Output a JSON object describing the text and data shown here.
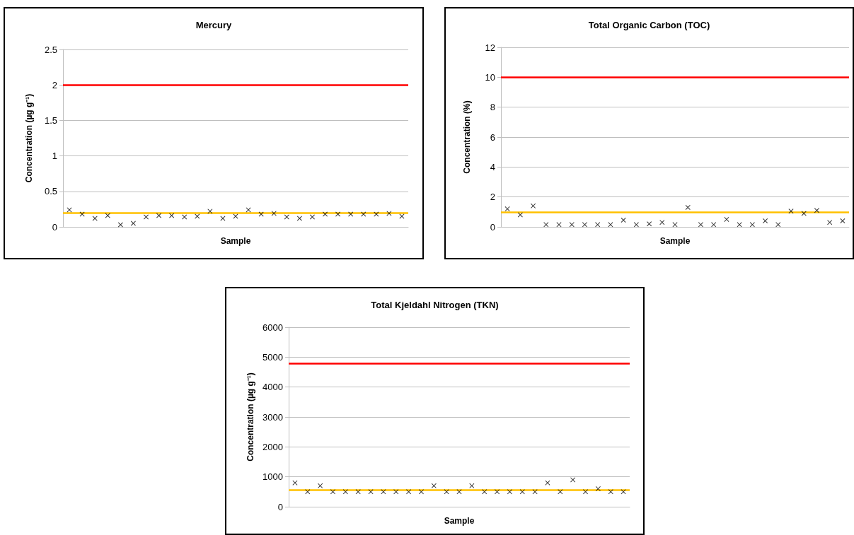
{
  "chart_data": [
    {
      "type": "scatter",
      "title": "Mercury",
      "xlabel": "Sample",
      "ylabel": "Concentration (µg g⁻¹)",
      "categories": [
        null,
        null,
        null,
        null,
        null,
        null,
        null,
        null,
        null,
        null,
        null,
        null,
        null,
        null,
        null,
        null,
        null,
        null,
        null,
        null,
        null,
        null,
        null,
        null,
        null,
        null,
        null
      ],
      "series": [
        {
          "color": "#000000",
          "values": [
            0.24,
            0.18,
            0.12,
            0.16,
            0.03,
            0.05,
            0.14,
            0.16,
            0.16,
            0.14,
            0.15,
            0.22,
            0.12,
            0.15,
            0.24,
            0.18,
            0.19,
            0.14,
            0.12,
            0.14,
            0.18,
            0.18,
            0.18,
            0.18,
            0.18,
            0.19,
            0.15
          ]
        }
      ],
      "ylim": [
        0,
        2.5
      ],
      "yticks": [
        0,
        0.5,
        1,
        1.5,
        2,
        2.5
      ],
      "grid": "y",
      "marker": "cross",
      "ref_lines": [
        {
          "axis": "y",
          "value": 2,
          "color": "#ff0000"
        },
        {
          "axis": "y",
          "value": 0.2,
          "color": "#ffc000"
        }
      ]
    },
    {
      "type": "scatter",
      "title": "Total Organic Carbon (TOC)",
      "xlabel": "Sample",
      "ylabel": "Concentration (%)",
      "categories": [
        null,
        null,
        null,
        null,
        null,
        null,
        null,
        null,
        null,
        null,
        null,
        null,
        null,
        null,
        null,
        null,
        null,
        null,
        null,
        null,
        null,
        null,
        null,
        null,
        null,
        null,
        null
      ],
      "series": [
        {
          "color": "#000000",
          "values": [
            1.2,
            0.8,
            1.4,
            0.15,
            0.15,
            0.15,
            0.15,
            0.15,
            0.15,
            0.45,
            0.15,
            0.2,
            0.3,
            0.15,
            1.3,
            0.15,
            0.15,
            0.5,
            0.15,
            0.15,
            0.4,
            0.15,
            1.05,
            0.9,
            1.1,
            0.3,
            0.4
          ]
        }
      ],
      "ylim": [
        0,
        12
      ],
      "yticks": [
        0,
        2,
        4,
        6,
        8,
        10,
        12
      ],
      "grid": "y",
      "marker": "cross",
      "ref_lines": [
        {
          "axis": "y",
          "value": 10,
          "color": "#ff0000"
        },
        {
          "axis": "y",
          "value": 1,
          "color": "#ffc000"
        }
      ]
    },
    {
      "type": "scatter",
      "title": "Total Kjeldahl Nitrogen (TKN)",
      "xlabel": "Sample",
      "ylabel": "Concentration (µg g⁻¹)",
      "categories": [
        null,
        null,
        null,
        null,
        null,
        null,
        null,
        null,
        null,
        null,
        null,
        null,
        null,
        null,
        null,
        null,
        null,
        null,
        null,
        null,
        null,
        null,
        null,
        null,
        null,
        null,
        null
      ],
      "series": [
        {
          "color": "#000000",
          "values": [
            800,
            500,
            700,
            500,
            500,
            500,
            500,
            500,
            500,
            500,
            500,
            700,
            500,
            500,
            700,
            500,
            500,
            500,
            500,
            500,
            800,
            500,
            900,
            500,
            600,
            500,
            500
          ]
        }
      ],
      "ylim": [
        0,
        6000
      ],
      "yticks": [
        0,
        1000,
        2000,
        3000,
        4000,
        5000,
        6000
      ],
      "grid": "y",
      "marker": "cross",
      "ref_lines": [
        {
          "axis": "y",
          "value": 4800,
          "color": "#ff0000"
        },
        {
          "axis": "y",
          "value": 550,
          "color": "#ffc000"
        }
      ]
    }
  ]
}
